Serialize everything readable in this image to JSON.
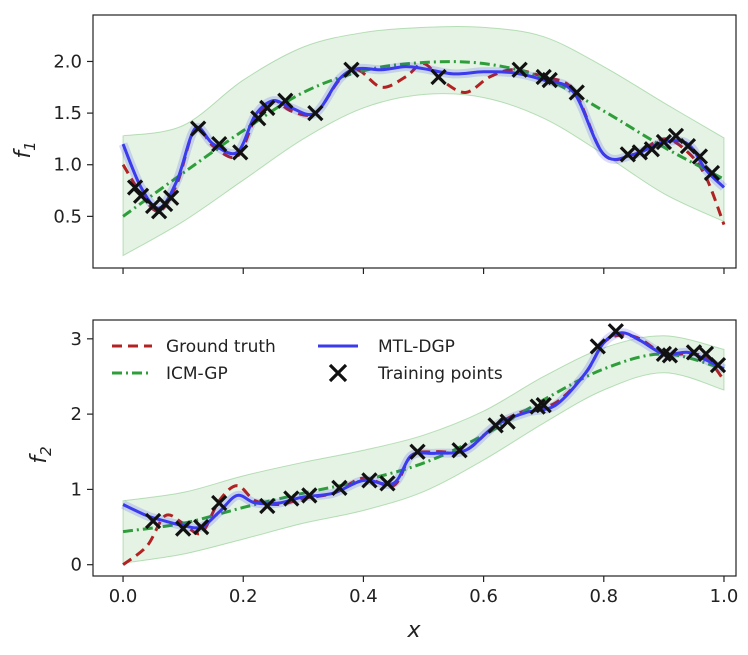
{
  "chart_data": [
    {
      "type": "line",
      "panel": "top",
      "xlabel": "",
      "ylabel": "f",
      "ylabel_sub": "1",
      "xlim": [
        -0.05,
        1.02
      ],
      "ylim": [
        0.0,
        2.45
      ],
      "xticks": [
        0.0,
        0.2,
        0.4,
        0.6,
        0.8,
        1.0
      ],
      "yticks": [
        0.5,
        1.0,
        1.5,
        2.0
      ],
      "ytick_labels": [
        "0.5",
        "1.0",
        "1.5",
        "2.0"
      ],
      "legend": null,
      "series": [
        {
          "name": "ICM-GP band",
          "kind": "band",
          "color": "#2ca02c",
          "x": [
            0,
            0.1,
            0.2,
            0.3,
            0.4,
            0.5,
            0.6,
            0.7,
            0.8,
            0.9,
            1.0
          ],
          "lower": [
            0.12,
            0.45,
            0.85,
            1.25,
            1.55,
            1.68,
            1.65,
            1.45,
            1.1,
            0.72,
            0.45
          ],
          "upper": [
            1.28,
            1.38,
            1.82,
            2.14,
            2.28,
            2.33,
            2.33,
            2.24,
            1.95,
            1.6,
            1.26
          ]
        },
        {
          "name": "Ground truth",
          "kind": "dashed",
          "color": "#b22222",
          "x": [
            0,
            0.03,
            0.06,
            0.09,
            0.12,
            0.15,
            0.19,
            0.22,
            0.25,
            0.28,
            0.32,
            0.36,
            0.39,
            0.43,
            0.47,
            0.5,
            0.53,
            0.57,
            0.61,
            0.65,
            0.7,
            0.75,
            0.8,
            0.85,
            0.9,
            0.94,
            0.97,
            1.0
          ],
          "y": [
            1.0,
            0.72,
            0.55,
            0.82,
            1.35,
            1.18,
            1.08,
            1.45,
            1.62,
            1.52,
            1.5,
            1.82,
            1.92,
            1.75,
            1.85,
            1.98,
            1.82,
            1.7,
            1.85,
            1.92,
            1.85,
            1.72,
            1.1,
            1.1,
            1.25,
            1.12,
            0.88,
            0.42
          ]
        },
        {
          "name": "ICM-GP",
          "kind": "dashdot",
          "color": "#2e9e3a",
          "x": [
            0,
            0.1,
            0.2,
            0.3,
            0.4,
            0.5,
            0.6,
            0.7,
            0.8,
            0.9,
            1.0
          ],
          "y": [
            0.5,
            0.92,
            1.33,
            1.7,
            1.91,
            1.99,
            1.98,
            1.84,
            1.52,
            1.17,
            0.86
          ]
        },
        {
          "name": "MTL-DGP",
          "kind": "solid",
          "color": "#3a3aee",
          "x": [
            0,
            0.03,
            0.06,
            0.09,
            0.12,
            0.15,
            0.19,
            0.22,
            0.25,
            0.28,
            0.32,
            0.36,
            0.39,
            0.43,
            0.47,
            0.5,
            0.55,
            0.6,
            0.65,
            0.7,
            0.75,
            0.8,
            0.85,
            0.9,
            0.94,
            0.97,
            1.0
          ],
          "y": [
            1.2,
            0.78,
            0.58,
            0.85,
            1.35,
            1.2,
            1.12,
            1.48,
            1.62,
            1.55,
            1.5,
            1.83,
            1.93,
            1.92,
            1.95,
            1.93,
            1.88,
            1.9,
            1.89,
            1.82,
            1.7,
            1.1,
            1.1,
            1.22,
            1.2,
            0.95,
            0.78
          ]
        },
        {
          "name": "Training points",
          "kind": "markers",
          "color": "#000000",
          "x": [
            0.02,
            0.03,
            0.05,
            0.06,
            0.07,
            0.08,
            0.125,
            0.16,
            0.195,
            0.225,
            0.24,
            0.27,
            0.32,
            0.38,
            0.525,
            0.66,
            0.7,
            0.71,
            0.755,
            0.84,
            0.86,
            0.88,
            0.9,
            0.92,
            0.94,
            0.96,
            0.98
          ],
          "y": [
            0.78,
            0.7,
            0.6,
            0.55,
            0.62,
            0.68,
            1.35,
            1.2,
            1.12,
            1.45,
            1.55,
            1.62,
            1.5,
            1.92,
            1.85,
            1.92,
            1.85,
            1.82,
            1.7,
            1.1,
            1.12,
            1.15,
            1.22,
            1.28,
            1.18,
            1.08,
            0.92
          ]
        }
      ]
    },
    {
      "type": "line",
      "panel": "bottom",
      "xlabel": "x",
      "ylabel": "f",
      "ylabel_sub": "2",
      "xlim": [
        -0.05,
        1.02
      ],
      "ylim": [
        -0.15,
        3.25
      ],
      "xticks": [
        0.0,
        0.2,
        0.4,
        0.6,
        0.8,
        1.0
      ],
      "xtick_labels": [
        "0.0",
        "0.2",
        "0.4",
        "0.6",
        "0.8",
        "1.0"
      ],
      "yticks": [
        0,
        1,
        2,
        3
      ],
      "ytick_labels": [
        "0",
        "1",
        "2",
        "3"
      ],
      "legend": {
        "placement": "top-left",
        "entries": [
          "Ground truth",
          "ICM-GP",
          "MTL-DGP",
          "Training points"
        ]
      },
      "series": [
        {
          "name": "ICM-GP band",
          "kind": "band",
          "color": "#2ca02c",
          "x": [
            0,
            0.1,
            0.2,
            0.3,
            0.4,
            0.5,
            0.6,
            0.7,
            0.8,
            0.9,
            1.0
          ],
          "lower": [
            0.02,
            0.14,
            0.34,
            0.55,
            0.72,
            0.97,
            1.39,
            1.88,
            2.32,
            2.55,
            2.32
          ],
          "upper": [
            0.85,
            0.96,
            1.18,
            1.36,
            1.52,
            1.72,
            2.04,
            2.5,
            2.88,
            3.04,
            2.86
          ]
        },
        {
          "name": "Ground truth",
          "kind": "dashed",
          "color": "#b22222",
          "x": [
            0,
            0.04,
            0.07,
            0.1,
            0.13,
            0.16,
            0.19,
            0.22,
            0.26,
            0.3,
            0.35,
            0.4,
            0.45,
            0.48,
            0.52,
            0.57,
            0.62,
            0.67,
            0.72,
            0.77,
            0.8,
            0.83,
            0.86,
            0.9,
            0.94,
            0.97,
            1.0
          ],
          "y": [
            0.0,
            0.25,
            0.65,
            0.55,
            0.42,
            0.85,
            1.05,
            0.85,
            0.8,
            0.88,
            0.95,
            1.15,
            1.05,
            1.45,
            1.5,
            1.52,
            1.85,
            2.05,
            2.15,
            2.55,
            2.95,
            3.05,
            3.0,
            2.8,
            2.8,
            2.75,
            2.45
          ]
        },
        {
          "name": "ICM-GP",
          "kind": "dashdot",
          "color": "#2e9e3a",
          "x": [
            0,
            0.1,
            0.2,
            0.3,
            0.4,
            0.5,
            0.6,
            0.7,
            0.8,
            0.9,
            1.0
          ],
          "y": [
            0.44,
            0.55,
            0.76,
            0.95,
            1.12,
            1.35,
            1.72,
            2.19,
            2.6,
            2.8,
            2.6
          ]
        },
        {
          "name": "MTL-DGP",
          "kind": "solid",
          "color": "#3a3aee",
          "x": [
            0,
            0.04,
            0.07,
            0.1,
            0.13,
            0.16,
            0.19,
            0.22,
            0.26,
            0.3,
            0.35,
            0.4,
            0.45,
            0.48,
            0.52,
            0.57,
            0.62,
            0.67,
            0.72,
            0.77,
            0.8,
            0.83,
            0.86,
            0.9,
            0.94,
            0.97,
            1.0
          ],
          "y": [
            0.8,
            0.65,
            0.58,
            0.52,
            0.5,
            0.7,
            0.92,
            0.82,
            0.82,
            0.9,
            0.95,
            1.12,
            1.08,
            1.45,
            1.48,
            1.52,
            1.85,
            2.02,
            2.12,
            2.55,
            2.95,
            3.08,
            2.98,
            2.8,
            2.82,
            2.72,
            2.6
          ]
        },
        {
          "name": "Training points",
          "kind": "markers",
          "color": "#000000",
          "x": [
            0.05,
            0.1,
            0.13,
            0.16,
            0.24,
            0.28,
            0.31,
            0.36,
            0.41,
            0.44,
            0.49,
            0.56,
            0.62,
            0.64,
            0.69,
            0.7,
            0.79,
            0.82,
            0.9,
            0.91,
            0.95,
            0.97,
            0.99
          ],
          "y": [
            0.58,
            0.48,
            0.5,
            0.82,
            0.78,
            0.88,
            0.92,
            1.02,
            1.12,
            1.08,
            1.5,
            1.52,
            1.85,
            1.9,
            2.1,
            2.12,
            2.9,
            3.1,
            2.8,
            2.78,
            2.82,
            2.8,
            2.65
          ]
        }
      ]
    }
  ]
}
